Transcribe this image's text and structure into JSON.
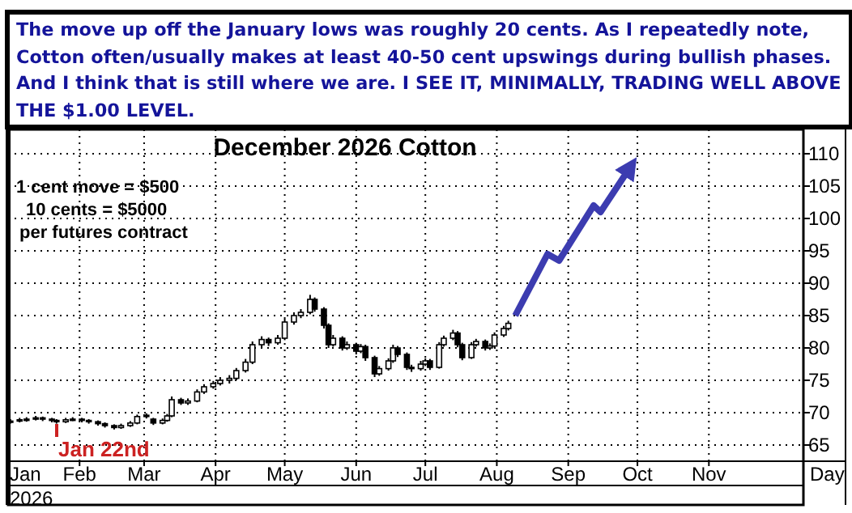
{
  "chart_data": {
    "type": "candlestick",
    "title": "December 2026 Cotton",
    "subtitle": "The move up off the January lows was roughly 20 cents. As I repeatedly note, Cotton often/usually makes at least 40-50 cent upswings during bullish phases. And I think that is still where we are. I SEE IT, MINIMALLY, TRADING WELL ABOVE THE $1.00 LEVEL.",
    "xlabel": "Day",
    "annotations": [
      "1 cent move = $500",
      "10 cents = $5000",
      "per futures contract",
      "2026",
      "Jan 22nd"
    ],
    "xlim": [
      "2026-01-01",
      "2026-12-12"
    ],
    "xticks": [
      {
        "value": "2026-01-01",
        "label": "Jan"
      },
      {
        "value": "2026-02-01",
        "label": "Feb"
      },
      {
        "value": "2026-03-01",
        "label": "Mar"
      },
      {
        "value": "2026-04-01",
        "label": "Apr"
      },
      {
        "value": "2026-05-01",
        "label": "May"
      },
      {
        "value": "2026-06-01",
        "label": "Jun"
      },
      {
        "value": "2026-07-01",
        "label": "Jul"
      },
      {
        "value": "2026-08-01",
        "label": "Aug"
      },
      {
        "value": "2026-09-01",
        "label": "Sep"
      },
      {
        "value": "2026-10-01",
        "label": "Oct"
      },
      {
        "value": "2026-11-01",
        "label": "Nov"
      }
    ],
    "ylim": [
      62.5,
      113.75
    ],
    "yticks": [
      65,
      70,
      75,
      80,
      85,
      90,
      95,
      100,
      105,
      110
    ],
    "grid": true,
    "series": [
      {
        "color": "#000000",
        "x": [
          "2026-01-02",
          "2026-01-06",
          "2026-01-09",
          "2026-01-13",
          "2026-01-16",
          "2026-01-20",
          "2026-01-22",
          "2026-01-26",
          "2026-01-29",
          "2026-02-02",
          "2026-02-05",
          "2026-02-09",
          "2026-02-12",
          "2026-02-16",
          "2026-02-19",
          "2026-02-23",
          "2026-02-26",
          "2026-03-02",
          "2026-03-05",
          "2026-03-09",
          "2026-03-11",
          "2026-03-13",
          "2026-03-17",
          "2026-03-20",
          "2026-03-24",
          "2026-03-27",
          "2026-03-31",
          "2026-04-03",
          "2026-04-07",
          "2026-04-10",
          "2026-04-14",
          "2026-04-17",
          "2026-04-21",
          "2026-04-24",
          "2026-04-28",
          "2026-05-01",
          "2026-05-05",
          "2026-05-08",
          "2026-05-12",
          "2026-05-14",
          "2026-05-18",
          "2026-05-20",
          "2026-05-22",
          "2026-05-26",
          "2026-05-28",
          "2026-06-01",
          "2026-06-03",
          "2026-06-05",
          "2026-06-09",
          "2026-06-11",
          "2026-06-15",
          "2026-06-17",
          "2026-06-19",
          "2026-06-23",
          "2026-06-25",
          "2026-06-29",
          "2026-07-01",
          "2026-07-03",
          "2026-07-07",
          "2026-07-09",
          "2026-07-13",
          "2026-07-15",
          "2026-07-17",
          "2026-07-21",
          "2026-07-23",
          "2026-07-27",
          "2026-07-29",
          "2026-07-31",
          "2026-08-04",
          "2026-08-06"
        ],
        "ohlc": [
          [
            68.5,
            69.0,
            68.3,
            68.7
          ],
          [
            68.7,
            69.2,
            68.5,
            68.9
          ],
          [
            68.9,
            69.3,
            68.6,
            69.0
          ],
          [
            69.0,
            69.5,
            68.8,
            69.2
          ],
          [
            69.2,
            69.4,
            68.7,
            69.0
          ],
          [
            69.0,
            69.2,
            68.5,
            68.8
          ],
          [
            68.8,
            69.0,
            68.3,
            68.6
          ],
          [
            68.6,
            69.2,
            68.4,
            68.9
          ],
          [
            68.9,
            69.3,
            68.7,
            69.0
          ],
          [
            69.0,
            69.2,
            68.5,
            68.8
          ],
          [
            68.8,
            69.0,
            68.3,
            68.6
          ],
          [
            68.6,
            68.8,
            68.0,
            68.3
          ],
          [
            68.3,
            68.5,
            67.7,
            68.0
          ],
          [
            68.0,
            68.2,
            67.4,
            67.7
          ],
          [
            67.7,
            68.3,
            67.5,
            68.0
          ],
          [
            68.0,
            68.7,
            67.8,
            68.4
          ],
          [
            68.4,
            69.7,
            68.2,
            69.4
          ],
          [
            69.4,
            69.9,
            69.1,
            69.6
          ],
          [
            69.0,
            69.2,
            68.1,
            68.4
          ],
          [
            68.4,
            69.1,
            68.2,
            68.8
          ],
          [
            68.8,
            69.8,
            68.6,
            69.5
          ],
          [
            69.5,
            72.5,
            69.3,
            72.0
          ],
          [
            72.0,
            72.3,
            71.2,
            71.5
          ],
          [
            71.5,
            72.2,
            71.2,
            71.8
          ],
          [
            71.8,
            73.6,
            71.6,
            73.2
          ],
          [
            73.2,
            74.4,
            72.9,
            74.0
          ],
          [
            74.0,
            74.9,
            73.7,
            74.5
          ],
          [
            74.5,
            75.5,
            74.2,
            75.0
          ],
          [
            75.0,
            75.8,
            74.5,
            75.3
          ],
          [
            75.3,
            76.9,
            75.0,
            76.5
          ],
          [
            76.5,
            78.3,
            76.2,
            77.8
          ],
          [
            77.8,
            81.0,
            77.5,
            80.5
          ],
          [
            80.5,
            81.8,
            80.0,
            81.3
          ],
          [
            81.3,
            81.6,
            80.3,
            80.8
          ],
          [
            80.8,
            82.0,
            80.5,
            81.5
          ],
          [
            81.5,
            84.5,
            81.2,
            84.0
          ],
          [
            84.0,
            85.5,
            83.6,
            85.0
          ],
          [
            85.0,
            86.0,
            84.6,
            85.5
          ],
          [
            85.5,
            88.2,
            85.2,
            87.5
          ],
          [
            87.5,
            87.8,
            85.6,
            86.0
          ],
          [
            86.0,
            86.3,
            83.0,
            83.5
          ],
          [
            83.5,
            83.8,
            80.0,
            80.5
          ],
          [
            80.5,
            82.0,
            80.2,
            81.5
          ],
          [
            81.5,
            81.8,
            79.6,
            80.0
          ],
          [
            80.0,
            81.0,
            79.7,
            80.5
          ],
          [
            80.5,
            80.8,
            79.0,
            79.5
          ],
          [
            79.5,
            80.6,
            79.2,
            80.2
          ],
          [
            80.2,
            80.5,
            78.0,
            78.5
          ],
          [
            78.5,
            78.8,
            75.5,
            76.0
          ],
          [
            76.0,
            77.2,
            75.7,
            76.8
          ],
          [
            76.8,
            78.4,
            76.5,
            78.0
          ],
          [
            78.0,
            80.5,
            77.7,
            80.0
          ],
          [
            80.0,
            80.3,
            78.6,
            79.0
          ],
          [
            79.0,
            79.3,
            76.6,
            77.0
          ],
          [
            77.0,
            77.4,
            76.3,
            76.8
          ],
          [
            76.8,
            78.0,
            76.5,
            77.5
          ],
          [
            77.5,
            78.4,
            77.2,
            78.0
          ],
          [
            78.0,
            78.3,
            76.6,
            77.0
          ],
          [
            77.0,
            80.9,
            76.8,
            80.5
          ],
          [
            80.5,
            81.9,
            80.2,
            81.5
          ],
          [
            81.5,
            82.8,
            81.2,
            82.3
          ],
          [
            82.3,
            82.6,
            80.1,
            80.5
          ],
          [
            80.5,
            80.8,
            78.1,
            78.5
          ],
          [
            78.5,
            80.9,
            78.3,
            80.5
          ],
          [
            80.5,
            81.4,
            80.2,
            81.0
          ],
          [
            81.0,
            81.3,
            79.6,
            80.0
          ],
          [
            80.0,
            80.7,
            79.7,
            80.3
          ],
          [
            80.3,
            82.4,
            80.0,
            82.0
          ],
          [
            82.0,
            83.4,
            81.7,
            83.0
          ],
          [
            83.0,
            84.2,
            82.7,
            83.8
          ]
        ]
      },
      {
        "type": "line",
        "color": "#3c3cb0",
        "x": [
          "2026-08-09",
          "2026-08-23",
          "2026-08-28",
          "2026-09-12",
          "2026-09-15",
          "2026-09-28"
        ],
        "values": [
          85,
          94.5,
          93.5,
          102,
          101,
          108
        ]
      }
    ]
  }
}
